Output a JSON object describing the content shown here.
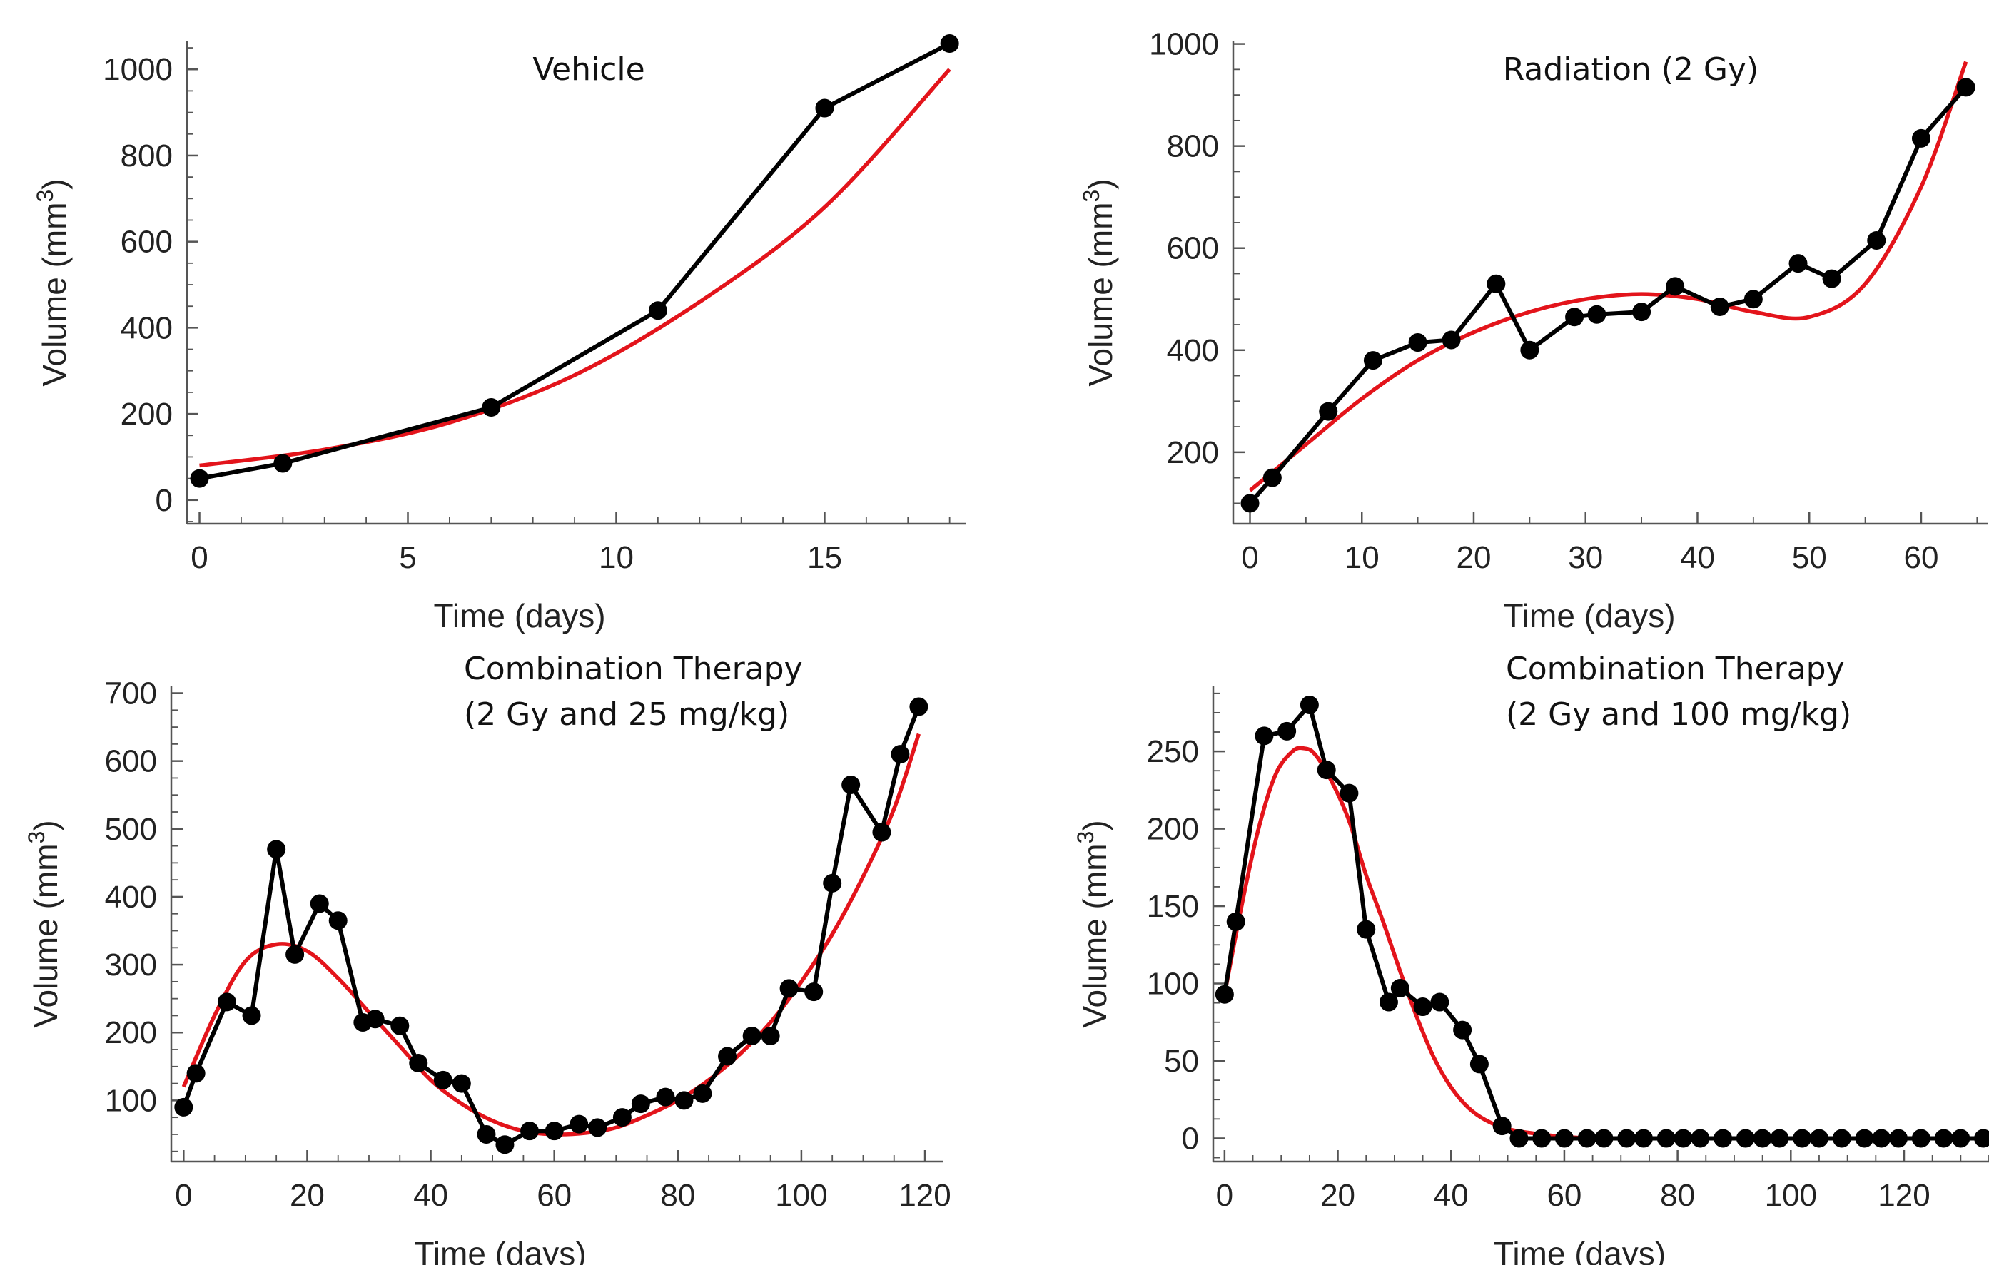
{
  "chart_data": [
    {
      "type": "line",
      "title": "Vehicle",
      "title_lines": [
        "Vehicle"
      ],
      "xlabel": "Time (days)",
      "ylabel": "Volume (mm",
      "ylabel_sup": "3",
      "ylabel_close": ")",
      "xlim": [
        -0.3,
        18.4
      ],
      "ylim": [
        -55,
        1065
      ],
      "xticks": [
        0,
        5,
        10,
        15
      ],
      "yticks": [
        0,
        200,
        400,
        600,
        800,
        1000
      ],
      "series": [
        {
          "name": "",
          "style": "line+points",
          "color": "#000000",
          "x": [
            0,
            2,
            7,
            11,
            15,
            18
          ],
          "y": [
            50,
            85,
            215,
            440,
            910,
            1060
          ]
        },
        {
          "name": "",
          "style": "line",
          "color": "#e3141b",
          "x": [
            0,
            3,
            6,
            9,
            12,
            15,
            18
          ],
          "y": [
            80,
            117,
            180,
            290,
            460,
            680,
            1000
          ]
        }
      ]
    },
    {
      "type": "line",
      "title": "Radiation (2 Gy)",
      "title_lines": [
        "Radiation (2 Gy)"
      ],
      "xlabel": "Time (days)",
      "ylabel": "Volume (mm",
      "ylabel_sup": "3",
      "ylabel_close": ")",
      "xlim": [
        -1.5,
        66
      ],
      "ylim": [
        60,
        1005
      ],
      "xticks": [
        0,
        10,
        20,
        30,
        40,
        50,
        60
      ],
      "yticks": [
        200,
        400,
        600,
        800,
        1000
      ],
      "series": [
        {
          "name": "",
          "style": "line+points",
          "color": "#000000",
          "x": [
            0,
            2,
            7,
            11,
            15,
            18,
            22,
            25,
            29,
            31,
            35,
            38,
            42,
            45,
            49,
            52,
            56,
            60,
            64
          ],
          "y": [
            100,
            150,
            280,
            380,
            415,
            420,
            530,
            400,
            465,
            470,
            475,
            525,
            485,
            500,
            570,
            540,
            615,
            815,
            915
          ]
        },
        {
          "name": "",
          "style": "line",
          "color": "#e3141b",
          "x": [
            0,
            5,
            10,
            15,
            20,
            25,
            30,
            35,
            40,
            45,
            50,
            55,
            60,
            64
          ],
          "y": [
            125,
            215,
            305,
            380,
            435,
            475,
            500,
            510,
            500,
            475,
            465,
            530,
            720,
            965
          ]
        }
      ]
    },
    {
      "type": "line",
      "title": "Combination Therapy (2 Gy and 25 mg/kg)",
      "title_lines": [
        "Combination Therapy",
        "(2 Gy and 25 mg/kg)"
      ],
      "xlabel": "Time (days)",
      "ylabel": "Volume (mm",
      "ylabel_sup": "3",
      "ylabel_close": ")",
      "xlim": [
        -2,
        123
      ],
      "ylim": [
        10,
        710
      ],
      "xticks": [
        0,
        20,
        40,
        60,
        80,
        100,
        120
      ],
      "yticks": [
        100,
        200,
        300,
        400,
        500,
        600,
        700
      ],
      "series": [
        {
          "name": "",
          "style": "line+points",
          "color": "#000000",
          "x": [
            0,
            2,
            7,
            11,
            15,
            18,
            22,
            25,
            29,
            31,
            35,
            38,
            42,
            45,
            49,
            52,
            56,
            60,
            64,
            67,
            71,
            74,
            78,
            81,
            84,
            88,
            92,
            95,
            98,
            102,
            105,
            108,
            113,
            116,
            119
          ],
          "y": [
            90,
            140,
            245,
            225,
            470,
            315,
            390,
            365,
            215,
            220,
            210,
            155,
            130,
            125,
            50,
            35,
            55,
            55,
            65,
            60,
            75,
            95,
            105,
            100,
            110,
            165,
            195,
            195,
            265,
            260,
            420,
            565,
            495,
            610,
            680
          ]
        },
        {
          "name": "",
          "style": "line",
          "color": "#e3141b",
          "x": [
            0,
            5,
            10,
            15,
            20,
            25,
            30,
            35,
            40,
            45,
            50,
            55,
            60,
            65,
            70,
            75,
            80,
            85,
            90,
            95,
            100,
            105,
            110,
            115,
            119
          ],
          "y": [
            120,
            225,
            305,
            330,
            320,
            280,
            230,
            180,
            130,
            95,
            70,
            55,
            50,
            52,
            60,
            78,
            100,
            130,
            168,
            215,
            275,
            345,
            430,
            530,
            640
          ]
        }
      ]
    },
    {
      "type": "line",
      "title": "Combination Therapy (2 Gy and 100 mg/kg)",
      "title_lines": [
        "Combination Therapy",
        "(2 Gy and 100 mg/kg)"
      ],
      "xlabel": "Time (days)",
      "ylabel": "Volume (mm",
      "ylabel_sup": "3",
      "ylabel_close": ")",
      "xlim": [
        -2,
        135
      ],
      "ylim": [
        -15,
        292
      ],
      "xticks": [
        0,
        20,
        40,
        60,
        80,
        100,
        120
      ],
      "yticks": [
        0,
        50,
        100,
        150,
        200,
        250
      ],
      "series": [
        {
          "name": "",
          "style": "line+points",
          "color": "#000000",
          "x": [
            0,
            2,
            7,
            11,
            15,
            18,
            22,
            25,
            29,
            31,
            35,
            38,
            42,
            45,
            49,
            52,
            56,
            60,
            64,
            67,
            71,
            74,
            78,
            81,
            84,
            88,
            92,
            95,
            98,
            102,
            105,
            109,
            113,
            116,
            119,
            123,
            127,
            130,
            134
          ],
          "y": [
            93,
            140,
            260,
            263,
            280,
            238,
            223,
            135,
            88,
            97,
            85,
            88,
            70,
            48,
            8,
            0,
            0,
            0,
            0,
            0,
            0,
            0,
            0,
            0,
            0,
            0,
            0,
            0,
            0,
            0,
            0,
            0,
            0,
            0,
            0,
            0,
            0,
            0,
            0
          ]
        },
        {
          "name": "",
          "style": "line",
          "color": "#e3141b",
          "x": [
            0,
            3,
            6,
            9,
            12,
            14,
            16,
            19,
            22,
            25,
            28,
            31,
            34,
            37,
            40,
            43,
            46,
            50,
            55,
            60,
            65,
            70,
            80,
            100,
            134
          ],
          "y": [
            93,
            150,
            200,
            235,
            250,
            252,
            248,
            230,
            205,
            170,
            140,
            108,
            78,
            52,
            33,
            20,
            12,
            6,
            3,
            1,
            0,
            0,
            0,
            0,
            0
          ]
        }
      ]
    }
  ]
}
